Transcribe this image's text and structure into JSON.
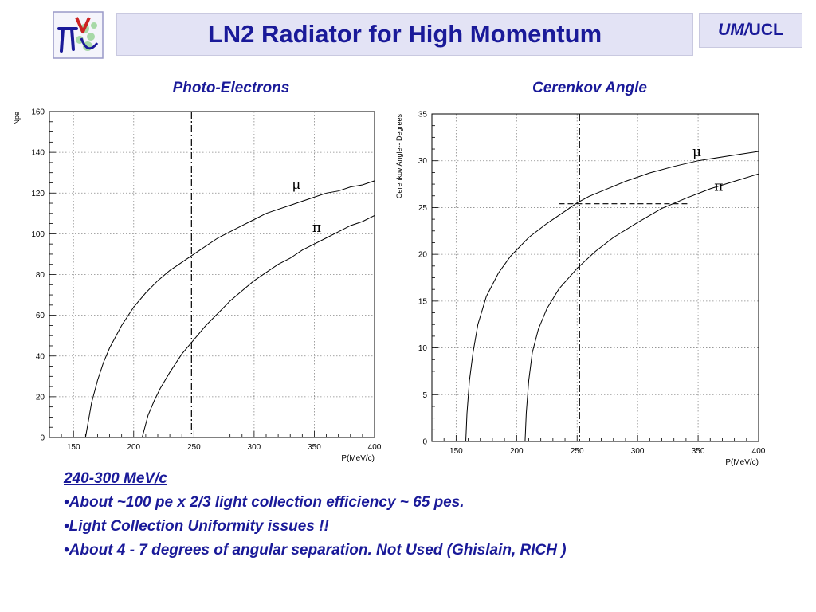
{
  "header": {
    "title": "LN2 Radiator for High Momentum",
    "tag_italic": "UM/",
    "tag_plain": "UCL"
  },
  "chart_data": [
    {
      "type": "line",
      "title": "Photo-Electrons",
      "xlabel": "P(MeV/c)",
      "ylabel": "Npe",
      "xlim": [
        130,
        400
      ],
      "ylim": [
        0,
        160
      ],
      "xticks": [
        150,
        200,
        250,
        300,
        350,
        400
      ],
      "yticks": [
        0,
        20,
        40,
        60,
        80,
        100,
        120,
        140,
        160
      ],
      "grid": "dashed",
      "vline": {
        "x": 248
      },
      "series": [
        {
          "name": "μ",
          "x": [
            160,
            165,
            170,
            175,
            180,
            190,
            200,
            210,
            220,
            230,
            240,
            250,
            260,
            270,
            280,
            290,
            300,
            310,
            320,
            330,
            340,
            350,
            360,
            370,
            380,
            390,
            400
          ],
          "y": [
            0,
            17,
            28,
            37,
            44,
            55,
            64,
            71,
            77,
            82,
            86,
            90,
            94,
            98,
            101,
            104,
            107,
            110,
            112,
            114,
            116,
            118,
            120,
            121,
            123,
            124,
            126
          ]
        },
        {
          "name": "π",
          "x": [
            207,
            212,
            217,
            222,
            230,
            240,
            250,
            260,
            270,
            280,
            290,
            300,
            310,
            320,
            330,
            340,
            350,
            360,
            370,
            380,
            390,
            400
          ],
          "y": [
            0,
            11,
            18,
            24,
            32,
            41,
            48,
            55,
            61,
            67,
            72,
            77,
            81,
            85,
            88,
            92,
            95,
            98,
            101,
            104,
            106,
            109
          ]
        }
      ]
    },
    {
      "type": "line",
      "title": "Cerenkov Angle",
      "xlabel": "P(MeV/c)",
      "ylabel": "Cerenkov Angle-- Degrees",
      "xlim": [
        130,
        400
      ],
      "ylim": [
        0,
        35
      ],
      "xticks": [
        150,
        200,
        250,
        300,
        350,
        400
      ],
      "yticks": [
        0,
        5,
        10,
        15,
        20,
        25,
        30,
        35
      ],
      "grid": "dashed",
      "vline": {
        "x": 252
      },
      "hline": {
        "y": 25.4,
        "x_from": 235,
        "x_to": 343
      },
      "series": [
        {
          "name": "μ",
          "x": [
            158,
            159,
            161,
            164,
            168,
            175,
            185,
            195,
            210,
            225,
            240,
            250,
            260,
            275,
            290,
            310,
            330,
            350,
            375,
            400
          ],
          "y": [
            0,
            3,
            6.5,
            9.5,
            12.5,
            15.5,
            18,
            19.8,
            21.8,
            23.3,
            24.6,
            25.5,
            26.2,
            27,
            27.8,
            28.7,
            29.4,
            30,
            30.5,
            31
          ]
        },
        {
          "name": "π",
          "x": [
            207,
            208,
            210,
            213,
            218,
            225,
            235,
            250,
            265,
            280,
            300,
            320,
            340,
            360,
            380,
            400
          ],
          "y": [
            0,
            3,
            6.5,
            9.5,
            12,
            14.2,
            16.3,
            18.5,
            20.3,
            21.8,
            23.4,
            24.9,
            26,
            27,
            27.8,
            28.6
          ]
        }
      ]
    }
  ],
  "notes": {
    "heading": "240-300 MeV/c",
    "bullets": [
      "•About  ~100 pe  x  2/3  light collection efficiency ~ 65 pes.",
      "•Light Collection Uniformity issues !!",
      "•About 4 - 7 degrees of  angular separation.  Not Used (Ghislain, RICH )"
    ]
  }
}
